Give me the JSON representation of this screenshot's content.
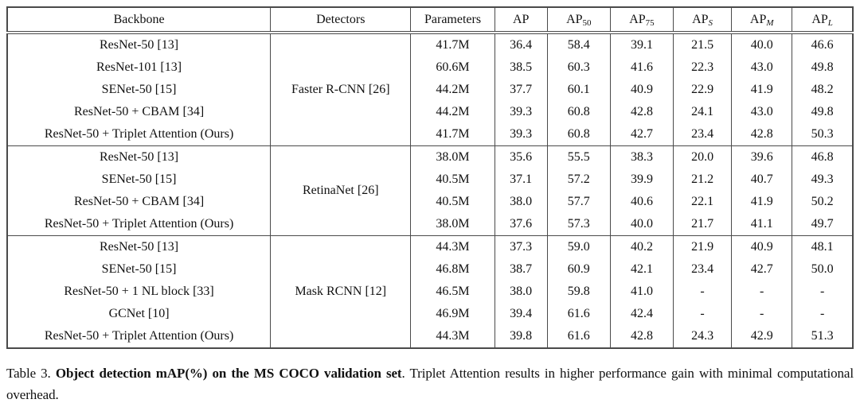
{
  "table": {
    "columns": [
      {
        "base": "Backbone",
        "sub": ""
      },
      {
        "base": "Detectors",
        "sub": ""
      },
      {
        "base": "Parameters",
        "sub": ""
      },
      {
        "base": "AP",
        "sub": ""
      },
      {
        "base": "AP",
        "sub": "50"
      },
      {
        "base": "AP",
        "sub": "75"
      },
      {
        "base": "AP",
        "sub": "S"
      },
      {
        "base": "AP",
        "sub": "M"
      },
      {
        "base": "AP",
        "sub": "L"
      }
    ],
    "cell_keys": [
      "parameters",
      "ap",
      "ap50",
      "ap75",
      "ap-s",
      "ap-m",
      "ap-l"
    ],
    "sections": [
      {
        "detector": "Faster R-CNN [26]",
        "rows": [
          {
            "backbone": "ResNet-50 [13]",
            "cells": [
              "41.7M",
              "36.4",
              "58.4",
              "39.1",
              "21.5",
              "40.0",
              "46.6"
            ],
            "bold": [
              1,
              0,
              0,
              0,
              0,
              0,
              0
            ]
          },
          {
            "backbone": "ResNet-101 [13]",
            "cells": [
              "60.6M",
              "38.5",
              "60.3",
              "41.6",
              "22.3",
              "43.0",
              "49.8"
            ],
            "bold": [
              0,
              0,
              0,
              0,
              0,
              1,
              0
            ]
          },
          {
            "backbone": "SENet-50 [15]",
            "cells": [
              "44.2M",
              "37.7",
              "60.1",
              "40.9",
              "22.9",
              "41.9",
              "48.2"
            ],
            "bold": [
              0,
              0,
              0,
              0,
              0,
              0,
              0
            ]
          },
          {
            "backbone": "ResNet-50 + CBAM [34]",
            "cells": [
              "44.2M",
              "39.3",
              "60.8",
              "42.8",
              "24.1",
              "43.0",
              "49.8"
            ],
            "bold": [
              0,
              1,
              1,
              1,
              1,
              1,
              0
            ]
          },
          {
            "backbone": "ResNet-50 + Triplet Attention (Ours)",
            "cells": [
              "41.7M",
              "39.3",
              "60.8",
              "42.7",
              "23.4",
              "42.8",
              "50.3"
            ],
            "bold": [
              1,
              1,
              1,
              0,
              0,
              0,
              1
            ]
          }
        ]
      },
      {
        "detector": "RetinaNet [26]",
        "rows": [
          {
            "backbone": "ResNet-50 [13]",
            "cells": [
              "38.0M",
              "35.6",
              "55.5",
              "38.3",
              "20.0",
              "39.6",
              "46.8"
            ],
            "bold": [
              1,
              0,
              0,
              0,
              0,
              0,
              0
            ]
          },
          {
            "backbone": "SENet-50 [15]",
            "cells": [
              "40.5M",
              "37.1",
              "57.2",
              "39.9",
              "21.2",
              "40.7",
              "49.3"
            ],
            "bold": [
              0,
              0,
              0,
              0,
              0,
              0,
              0
            ]
          },
          {
            "backbone": "ResNet-50 + CBAM [34]",
            "cells": [
              "40.5M",
              "38.0",
              "57.7",
              "40.6",
              "22.1",
              "41.9",
              "50.2"
            ],
            "bold": [
              0,
              1,
              1,
              1,
              1,
              1,
              1
            ]
          },
          {
            "backbone": "ResNet-50 + Triplet Attention (Ours)",
            "cells": [
              "38.0M",
              "37.6",
              "57.3",
              "40.0",
              "21.7",
              "41.1",
              "49.7"
            ],
            "bold": [
              1,
              0,
              0,
              0,
              0,
              0,
              0
            ]
          }
        ]
      },
      {
        "detector": "Mask RCNN [12]",
        "rows": [
          {
            "backbone": "ResNet-50 [13]",
            "cells": [
              "44.3M",
              "37.3",
              "59.0",
              "40.2",
              "21.9",
              "40.9",
              "48.1"
            ],
            "bold": [
              1,
              0,
              0,
              0,
              0,
              0,
              0
            ]
          },
          {
            "backbone": "SENet-50 [15]",
            "cells": [
              "46.8M",
              "38.7",
              "60.9",
              "42.1",
              "23.4",
              "42.7",
              "50.0"
            ],
            "bold": [
              0,
              0,
              0,
              0,
              0,
              0,
              0
            ]
          },
          {
            "backbone": "ResNet-50 + 1 NL block [33]",
            "cells": [
              "46.5M",
              "38.0",
              "59.8",
              "41.0",
              "-",
              "-",
              "-"
            ],
            "bold": [
              0,
              0,
              0,
              0,
              0,
              0,
              0
            ]
          },
          {
            "backbone": "GCNet [10]",
            "cells": [
              "46.9M",
              "39.4",
              "61.6",
              "42.4",
              "-",
              "-",
              "-"
            ],
            "bold": [
              0,
              0,
              1,
              0,
              0,
              0,
              0
            ]
          },
          {
            "backbone": "ResNet-50 + Triplet Attention (Ours)",
            "cells": [
              "44.3M",
              "39.8",
              "61.6",
              "42.8",
              "24.3",
              "42.9",
              "51.3"
            ],
            "bold": [
              1,
              1,
              1,
              1,
              1,
              1,
              1
            ]
          }
        ]
      }
    ]
  },
  "caption": {
    "prefix": "Table 3. ",
    "bold": "Object detection mAP(%) on the MS COCO validation set",
    "rest": ". Triplet Attention results in higher performance gain with minimal computational overhead."
  },
  "colors": {
    "text": "#111111",
    "border": "#4a4a4a",
    "background": "#ffffff"
  }
}
